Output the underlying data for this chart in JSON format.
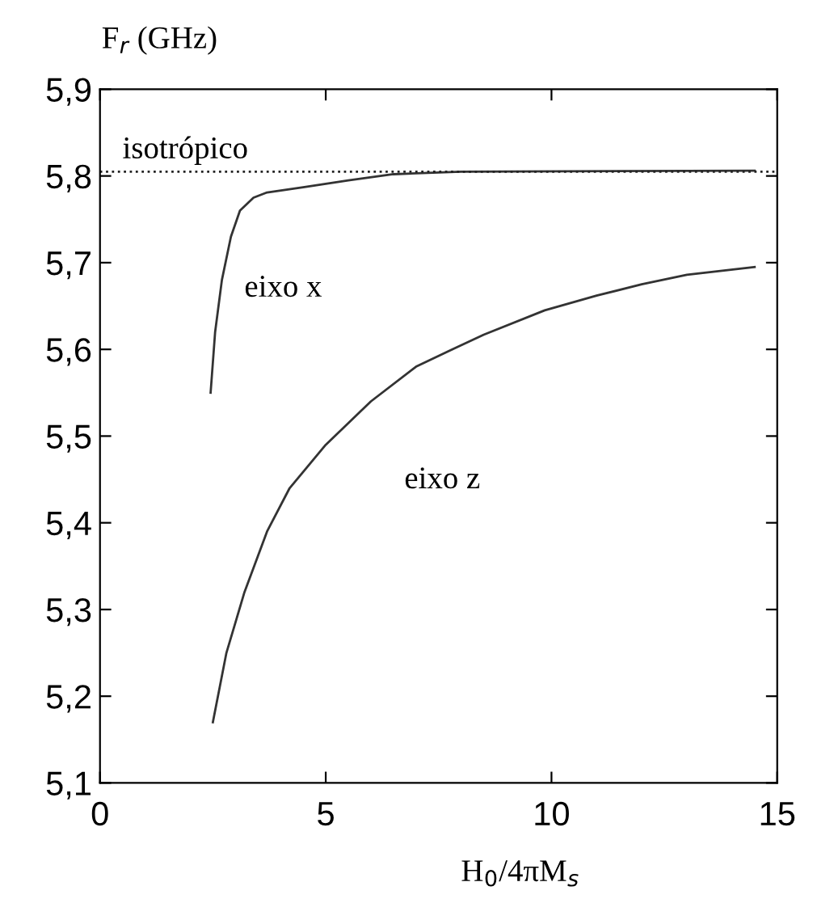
{
  "chart_data": {
    "type": "line",
    "xlabel": "H$_{0}$/4πM$_{s}$",
    "ylabel": "F$_{r}$ (GHz)",
    "xlim": [
      0,
      15
    ],
    "xticks": [
      0,
      5,
      10,
      15
    ],
    "ylim": [
      5.1,
      5.9
    ],
    "yticks": [
      {
        "value": 5.1,
        "label": "5,1"
      },
      {
        "value": 5.2,
        "label": "5,2"
      },
      {
        "value": 5.3,
        "label": "5,3"
      },
      {
        "value": 5.4,
        "label": "5,4"
      },
      {
        "value": 5.5,
        "label": "5,5"
      },
      {
        "value": 5.6,
        "label": "5,6"
      },
      {
        "value": 5.7,
        "label": "5,7"
      },
      {
        "value": 5.8,
        "label": "5,8"
      },
      {
        "value": 5.9,
        "label": "5,9"
      }
    ],
    "grid": false,
    "legend": false,
    "marker": "none",
    "line_style": "solid",
    "ref_lines": [
      {
        "axis": "y",
        "value": 5.805,
        "label": "isotrópico",
        "color": "#222222",
        "line_style": "dotted"
      }
    ],
    "series": [
      {
        "name": "eixo x",
        "color": "#333333",
        "x": [
          2.45,
          2.55,
          2.7,
          2.9,
          3.1,
          3.4,
          3.7,
          4.5,
          5.5,
          6.5,
          8,
          14.5
        ],
        "values": [
          5.55,
          5.62,
          5.68,
          5.73,
          5.76,
          5.775,
          5.781,
          5.787,
          5.795,
          5.802,
          5.805,
          5.806
        ]
      },
      {
        "name": "eixo z",
        "color": "#333333",
        "x": [
          2.5,
          2.8,
          3.2,
          3.7,
          4.2,
          5,
          5.4,
          6,
          7,
          7.8,
          8.5,
          9.85,
          11,
          12,
          13,
          14.5
        ],
        "values": [
          5.17,
          5.25,
          5.32,
          5.39,
          5.44,
          5.49,
          5.51,
          5.54,
          5.58,
          5.6,
          5.617,
          5.645,
          5.662,
          5.675,
          5.686,
          5.695
        ]
      }
    ]
  }
}
